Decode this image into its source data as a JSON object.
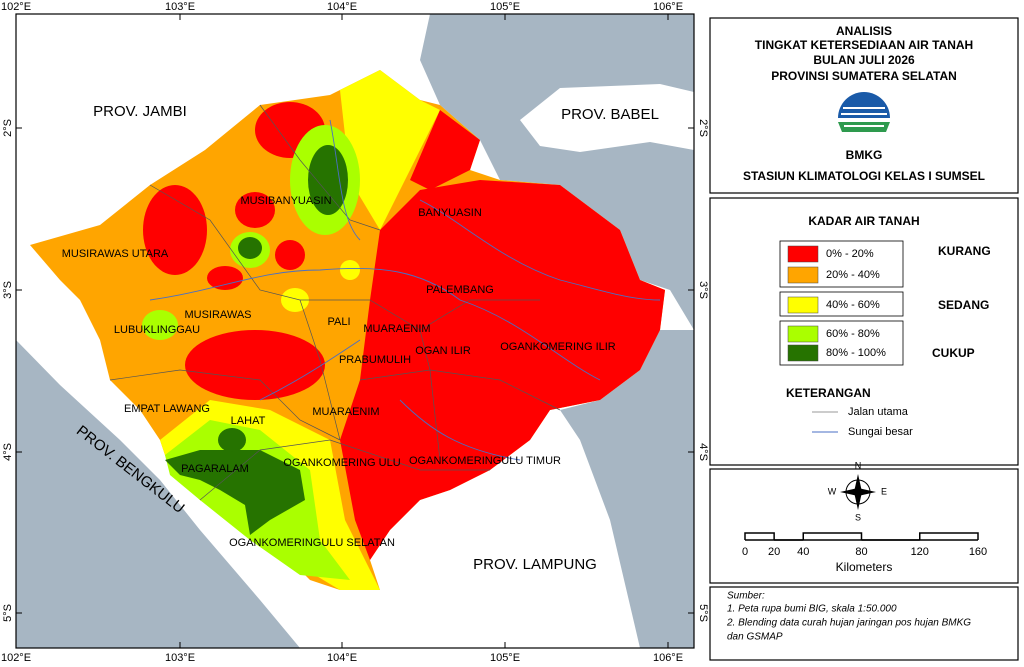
{
  "header": {
    "title_lines": [
      "ANALISIS",
      "TINGKAT KETERSEDIAAN AIR TANAH",
      "BULAN JULI 2026",
      "PROVINSI SUMATERA SELATAN"
    ],
    "logo_text": "BMKG",
    "station": "STASIUN KLIMATOLOGI KELAS I SUMSEL"
  },
  "legend": {
    "title": "KADAR AIR TANAH",
    "items": [
      {
        "label": "0% - 20%",
        "color": "#ff0000"
      },
      {
        "label": "20% - 40%",
        "color": "#ffa500"
      },
      {
        "label": "40% - 60%",
        "color": "#ffff00"
      },
      {
        "label": "60% - 80%",
        "color": "#aaff00"
      },
      {
        "label": "80% - 100%",
        "color": "#267300"
      }
    ],
    "categories": [
      "KURANG",
      "SEDANG",
      "CUKUP"
    ]
  },
  "keterangan": {
    "title": "KETERANGAN",
    "items": [
      "Jalan utama",
      "Sungai besar"
    ]
  },
  "compass": {
    "n": "N",
    "e": "E",
    "s": "S",
    "w": "W"
  },
  "scale": {
    "ticks": [
      0,
      20,
      40,
      80,
      120,
      160
    ],
    "unit": "Kilometers"
  },
  "source": {
    "title": "Sumber:",
    "lines": [
      "1. Peta rupa bumi BIG, skala 1:50.000",
      "2. Blending data curah hujan jaringan pos hujan BMKG",
      "dan GSMAP"
    ]
  },
  "grid": {
    "lon_labels": [
      "102°E",
      "103°E",
      "104°E",
      "105°E",
      "106°E"
    ],
    "lat_labels": [
      "2°S",
      "3°S",
      "4°S",
      "5°S"
    ]
  },
  "map_labels": {
    "provinces": [
      "PROV. JAMBI",
      "PROV. BABEL",
      "PROV. BENGKULU",
      "PROV. LAMPUNG"
    ],
    "regions": [
      "MUSIBANYUASIN",
      "BANYUASIN",
      "MUSIRAWAS UTARA",
      "PALEMBANG",
      "MUSIRAWAS",
      "LUBUKLINGGAU",
      "PALI",
      "MUARAENIM",
      "OGAN ILIR",
      "OGANKOMERING ILIR",
      "PRABUMULIH",
      "EMPAT LAWANG",
      "LAHAT",
      "MUARAENIM",
      "PAGARALAM",
      "OGANKOMERING ULU",
      "OGANKOMERINGULU TIMUR",
      "OGANKOMERINGULU SELATAN"
    ]
  }
}
